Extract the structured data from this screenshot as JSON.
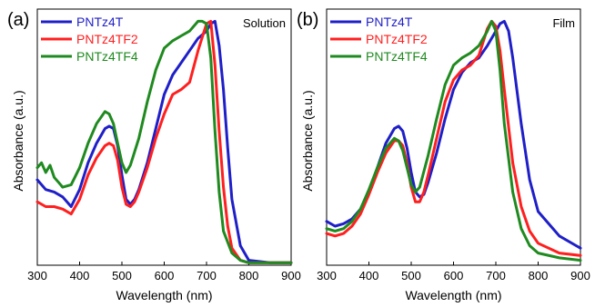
{
  "chart_data": [
    {
      "type": "line",
      "panel_label": "(a)",
      "annotation": "Solution",
      "xlabel": "Wavelength (nm)",
      "ylabel": "Absorbance (a.u.)",
      "xlim": [
        300,
        900
      ],
      "ylim": [
        0,
        1.05
      ],
      "xticks": [
        "300",
        "400",
        "500",
        "600",
        "700",
        "800",
        "900"
      ],
      "legend_position": "top-left",
      "series": [
        {
          "name": "PNTz4T",
          "color": "#1f1fc8",
          "x": [
            300,
            320,
            340,
            360,
            380,
            400,
            420,
            440,
            460,
            470,
            480,
            490,
            500,
            510,
            520,
            530,
            540,
            560,
            580,
            600,
            620,
            640,
            660,
            680,
            700,
            710,
            720,
            730,
            740,
            750,
            760,
            780,
            800,
            850,
            900
          ],
          "y": [
            0.35,
            0.31,
            0.3,
            0.28,
            0.24,
            0.31,
            0.42,
            0.5,
            0.56,
            0.57,
            0.56,
            0.49,
            0.37,
            0.27,
            0.25,
            0.27,
            0.31,
            0.42,
            0.56,
            0.7,
            0.78,
            0.83,
            0.88,
            0.93,
            0.96,
            0.99,
            1.0,
            0.9,
            0.72,
            0.48,
            0.27,
            0.08,
            0.02,
            0.01,
            0.01
          ]
        },
        {
          "name": "PNTz4TF2",
          "color": "#ff1f1f",
          "x": [
            300,
            320,
            340,
            360,
            380,
            400,
            420,
            440,
            460,
            470,
            480,
            490,
            500,
            510,
            520,
            530,
            540,
            560,
            580,
            600,
            620,
            640,
            660,
            680,
            700,
            710,
            720,
            730,
            740,
            750,
            760,
            780,
            800,
            850,
            900
          ],
          "y": [
            0.26,
            0.24,
            0.24,
            0.23,
            0.21,
            0.27,
            0.37,
            0.44,
            0.49,
            0.5,
            0.49,
            0.43,
            0.32,
            0.25,
            0.24,
            0.26,
            0.3,
            0.4,
            0.52,
            0.62,
            0.7,
            0.72,
            0.75,
            0.88,
            0.99,
            1.0,
            0.82,
            0.55,
            0.32,
            0.16,
            0.07,
            0.02,
            0.01,
            0.01,
            0.01
          ]
        },
        {
          "name": "PNTz4TF4",
          "color": "#1f8a1f",
          "x": [
            300,
            310,
            320,
            330,
            340,
            350,
            360,
            380,
            400,
            420,
            440,
            460,
            470,
            480,
            490,
            500,
            510,
            520,
            540,
            560,
            580,
            600,
            620,
            640,
            660,
            680,
            690,
            700,
            710,
            720,
            730,
            740,
            760,
            780,
            800,
            850,
            900
          ],
          "y": [
            0.4,
            0.42,
            0.38,
            0.41,
            0.36,
            0.34,
            0.32,
            0.33,
            0.4,
            0.5,
            0.58,
            0.63,
            0.62,
            0.58,
            0.5,
            0.42,
            0.38,
            0.41,
            0.52,
            0.67,
            0.8,
            0.89,
            0.92,
            0.94,
            0.96,
            1.0,
            1.0,
            0.99,
            0.85,
            0.55,
            0.3,
            0.14,
            0.05,
            0.02,
            0.01,
            0.01,
            0.01
          ]
        }
      ]
    },
    {
      "type": "line",
      "panel_label": "(b)",
      "annotation": "Film",
      "xlabel": "Wavelength (nm)",
      "ylabel": "Absorbance (a.u.)",
      "xlim": [
        300,
        900
      ],
      "ylim": [
        0,
        1.05
      ],
      "xticks": [
        "300",
        "400",
        "500",
        "600",
        "700",
        "800",
        "900"
      ],
      "legend_position": "top-left",
      "series": [
        {
          "name": "PNTz4T",
          "color": "#1f1fc8",
          "x": [
            300,
            320,
            340,
            360,
            380,
            400,
            420,
            440,
            460,
            470,
            480,
            490,
            500,
            510,
            520,
            530,
            540,
            560,
            580,
            600,
            620,
            640,
            660,
            680,
            700,
            710,
            720,
            730,
            740,
            760,
            780,
            800,
            850,
            900
          ],
          "y": [
            0.18,
            0.16,
            0.17,
            0.19,
            0.23,
            0.3,
            0.4,
            0.5,
            0.56,
            0.57,
            0.55,
            0.48,
            0.38,
            0.3,
            0.28,
            0.29,
            0.34,
            0.46,
            0.6,
            0.72,
            0.79,
            0.83,
            0.85,
            0.9,
            0.96,
            0.99,
            1.0,
            0.96,
            0.85,
            0.58,
            0.35,
            0.22,
            0.12,
            0.07
          ]
        },
        {
          "name": "PNTz4TF2",
          "color": "#ff1f1f",
          "x": [
            300,
            320,
            340,
            360,
            380,
            400,
            420,
            440,
            460,
            470,
            480,
            490,
            500,
            510,
            520,
            530,
            540,
            560,
            580,
            600,
            620,
            640,
            660,
            680,
            690,
            700,
            710,
            720,
            740,
            760,
            780,
            800,
            850,
            900
          ],
          "y": [
            0.13,
            0.12,
            0.13,
            0.16,
            0.21,
            0.29,
            0.38,
            0.46,
            0.51,
            0.51,
            0.49,
            0.42,
            0.32,
            0.26,
            0.26,
            0.3,
            0.37,
            0.52,
            0.67,
            0.76,
            0.8,
            0.82,
            0.86,
            0.97,
            1.0,
            0.98,
            0.88,
            0.72,
            0.42,
            0.24,
            0.14,
            0.09,
            0.05,
            0.04
          ]
        },
        {
          "name": "PNTz4TF4",
          "color": "#1f8a1f",
          "x": [
            300,
            320,
            340,
            360,
            380,
            400,
            420,
            440,
            460,
            470,
            480,
            490,
            500,
            510,
            520,
            540,
            560,
            580,
            600,
            620,
            640,
            660,
            680,
            690,
            700,
            710,
            720,
            740,
            760,
            780,
            800,
            850,
            900
          ],
          "y": [
            0.15,
            0.14,
            0.15,
            0.18,
            0.23,
            0.31,
            0.4,
            0.48,
            0.52,
            0.51,
            0.47,
            0.4,
            0.33,
            0.3,
            0.32,
            0.45,
            0.6,
            0.74,
            0.82,
            0.85,
            0.87,
            0.9,
            0.96,
            1.0,
            0.96,
            0.8,
            0.58,
            0.3,
            0.15,
            0.08,
            0.05,
            0.03,
            0.02
          ]
        }
      ]
    }
  ]
}
